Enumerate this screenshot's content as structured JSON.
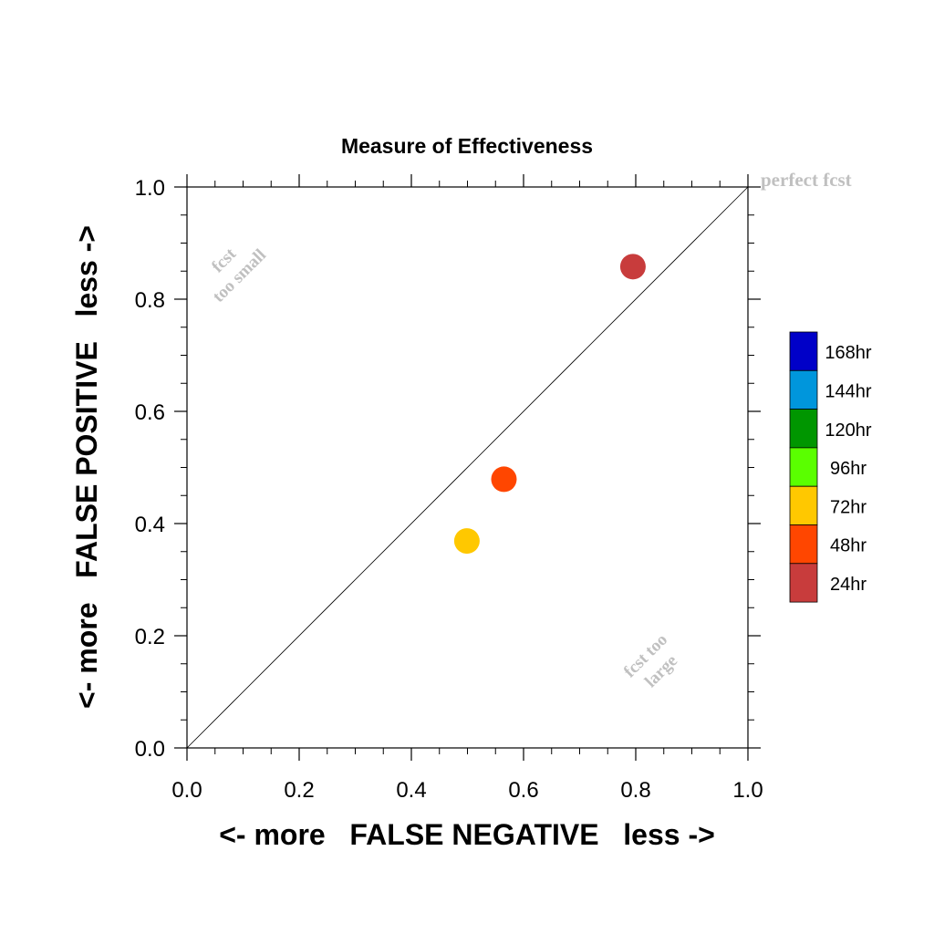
{
  "chart_data": {
    "type": "scatter",
    "title": "Measure of Effectiveness",
    "xlabel": "<- more   FALSE NEGATIVE   less ->",
    "ylabel": "<- more   FALSE POSITIVE   less ->",
    "xlim": [
      0.0,
      1.0
    ],
    "ylim": [
      0.0,
      1.0
    ],
    "x_ticks": [
      "0.0",
      "0.2",
      "0.4",
      "0.6",
      "0.8",
      "1.0"
    ],
    "y_ticks": [
      "0.0",
      "0.2",
      "0.4",
      "0.6",
      "0.8",
      "1.0"
    ],
    "grid": false,
    "diagonal_line": true,
    "annotations": {
      "perfect": "perfect fcst",
      "too_small_line1": "fcst",
      "too_small_line2": "too small",
      "too_large_line1": "fcst too",
      "too_large_line2": "large"
    },
    "legend_position": "right",
    "legend": [
      {
        "label": "168hr",
        "color": "#0000c8"
      },
      {
        "label": "144hr",
        "color": "#0096dc"
      },
      {
        "label": "120hr",
        "color": "#009600"
      },
      {
        "label": "96hr",
        "color": "#5aff00"
      },
      {
        "label": "72hr",
        "color": "#ffc800"
      },
      {
        "label": "48hr",
        "color": "#ff4600"
      },
      {
        "label": "24hr",
        "color": "#c83c3c"
      }
    ],
    "points": [
      {
        "label": "24hr",
        "x": 0.795,
        "y": 0.858,
        "color": "#c83c3c"
      },
      {
        "label": "48hr",
        "x": 0.565,
        "y": 0.479,
        "color": "#ff4600"
      },
      {
        "label": "72hr",
        "x": 0.499,
        "y": 0.369,
        "color": "#ffc800"
      }
    ]
  }
}
